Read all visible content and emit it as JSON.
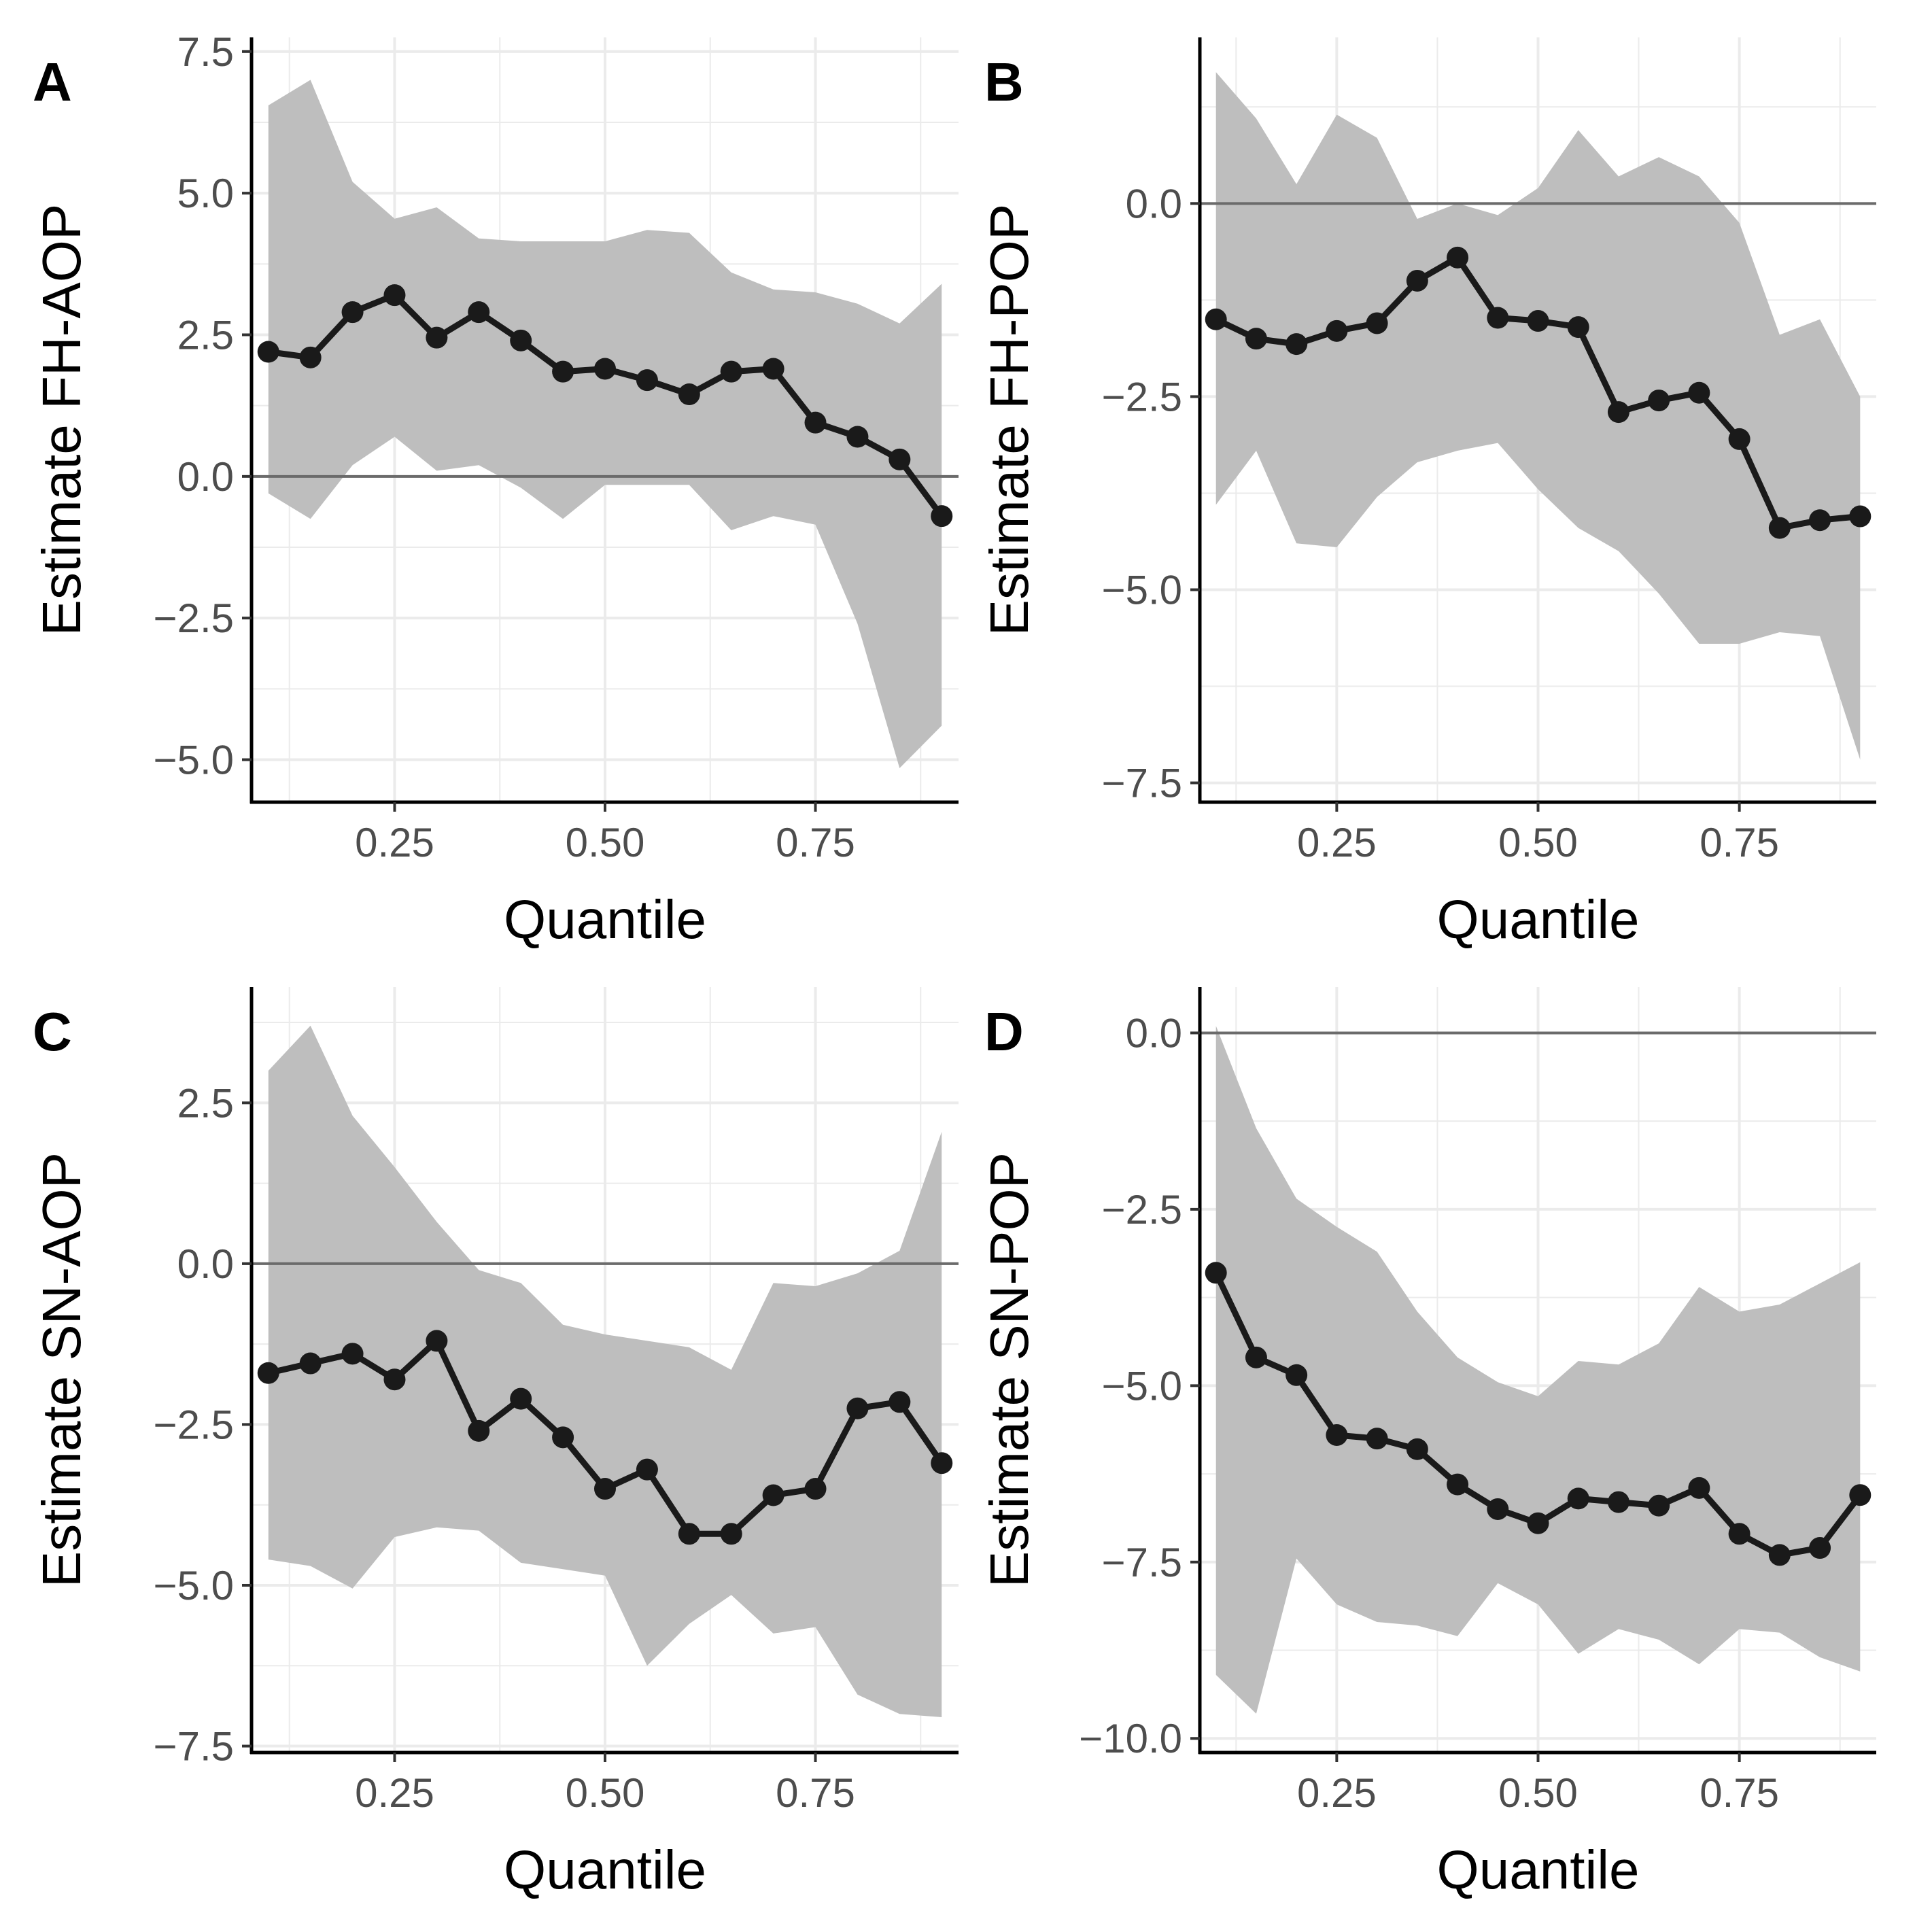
{
  "figure": {
    "x_ticks": [
      0.25,
      0.5,
      0.75
    ],
    "x_tick_labels": [
      "0.25",
      "0.50",
      "0.75"
    ],
    "colors": {
      "ribbon": "#bebebe",
      "line": "#1a1a1a",
      "grid": "#ebebeb",
      "zero_line": "#6b6b6b",
      "axis": "#000000"
    }
  },
  "chart_data": [
    {
      "type": "line",
      "panel": "A",
      "xlabel": "Quantile",
      "ylabel": "Estimate FH-AOP",
      "xlim": [
        0.08,
        0.92
      ],
      "ylim": [
        -5.75,
        7.75
      ],
      "y_ticks": [
        -5,
        -2.5,
        0,
        2.5,
        5,
        7.5
      ],
      "y_tick_labels": [
        "−5.0",
        "−2.5",
        "0.0",
        "2.5",
        "5.0",
        "7.5"
      ],
      "hline": 0,
      "x": [
        0.1,
        0.15,
        0.2,
        0.25,
        0.3,
        0.35,
        0.4,
        0.45,
        0.5,
        0.55,
        0.6,
        0.65,
        0.7,
        0.75,
        0.8,
        0.85,
        0.9
      ],
      "values": [
        2.2,
        2.1,
        2.9,
        3.2,
        2.45,
        2.9,
        2.4,
        1.85,
        1.9,
        1.7,
        1.45,
        1.85,
        1.9,
        0.95,
        0.7,
        0.3,
        -0.7
      ],
      "lower": [
        -0.3,
        -0.75,
        0.2,
        0.7,
        0.1,
        0.2,
        -0.2,
        -0.75,
        -0.15,
        -0.15,
        -0.15,
        -0.95,
        -0.7,
        -0.85,
        -2.6,
        -5.15,
        -4.4
      ],
      "upper": [
        6.55,
        7.0,
        5.2,
        4.55,
        4.75,
        4.2,
        4.15,
        4.15,
        4.15,
        4.35,
        4.3,
        3.6,
        3.3,
        3.25,
        3.05,
        2.7,
        3.4
      ]
    },
    {
      "type": "line",
      "panel": "B",
      "xlabel": "Quantile",
      "ylabel": "Estimate FH-POP",
      "xlim": [
        0.08,
        0.92
      ],
      "ylim": [
        -7.75,
        2.15
      ],
      "y_ticks": [
        -7.5,
        -5,
        -2.5,
        0
      ],
      "y_tick_labels": [
        "−7.5",
        "−5.0",
        "−2.5",
        "0.0"
      ],
      "hline": 0,
      "x": [
        0.1,
        0.15,
        0.2,
        0.25,
        0.3,
        0.35,
        0.4,
        0.45,
        0.5,
        0.55,
        0.6,
        0.65,
        0.7,
        0.75,
        0.8,
        0.85,
        0.9
      ],
      "values": [
        -1.5,
        -1.75,
        -1.82,
        -1.65,
        -1.55,
        -1.0,
        -0.7,
        -1.48,
        -1.52,
        -1.6,
        -2.7,
        -2.55,
        -2.45,
        -3.05,
        -4.2,
        -4.1,
        -4.05
      ],
      "lower": [
        -3.9,
        -3.2,
        -4.4,
        -4.45,
        -3.8,
        -3.35,
        -3.2,
        -3.1,
        -3.7,
        -4.2,
        -4.5,
        -5.05,
        -5.7,
        -5.7,
        -5.55,
        -5.6,
        -7.2
      ],
      "upper": [
        1.7,
        1.1,
        0.25,
        1.15,
        0.85,
        -0.2,
        0.0,
        -0.15,
        0.2,
        0.95,
        0.35,
        0.6,
        0.35,
        -0.25,
        -1.7,
        -1.5,
        -2.5
      ]
    },
    {
      "type": "line",
      "panel": "C",
      "xlabel": "Quantile",
      "ylabel": "Estimate SN-AOP",
      "xlim": [
        0.08,
        0.92
      ],
      "ylim": [
        -7.6,
        4.3
      ],
      "y_ticks": [
        -7.5,
        -5,
        -2.5,
        0,
        2.5
      ],
      "y_tick_labels": [
        "−7.5",
        "−5.0",
        "−2.5",
        "0.0",
        "2.5"
      ],
      "hline": 0,
      "x": [
        0.1,
        0.15,
        0.2,
        0.25,
        0.3,
        0.35,
        0.4,
        0.45,
        0.5,
        0.55,
        0.6,
        0.65,
        0.7,
        0.75,
        0.8,
        0.85,
        0.9
      ],
      "values": [
        -1.7,
        -1.55,
        -1.4,
        -1.8,
        -1.2,
        -2.6,
        -2.1,
        -2.7,
        -3.5,
        -3.2,
        -4.2,
        -4.2,
        -3.6,
        -3.5,
        -2.25,
        -2.15,
        -3.1
      ],
      "lower": [
        -4.6,
        -4.7,
        -5.05,
        -4.25,
        -4.1,
        -4.15,
        -4.65,
        -4.75,
        -4.85,
        -6.25,
        -5.6,
        -5.15,
        -5.75,
        -5.65,
        -6.7,
        -7.0,
        -7.05
      ],
      "upper": [
        3.0,
        3.7,
        2.3,
        1.5,
        0.65,
        -0.1,
        -0.3,
        -0.95,
        -1.1,
        -1.2,
        -1.3,
        -1.65,
        -0.3,
        -0.35,
        -0.15,
        0.2,
        2.05
      ]
    },
    {
      "type": "line",
      "panel": "D",
      "xlabel": "Quantile",
      "ylabel": "Estimate SN-POP",
      "xlim": [
        0.08,
        0.92
      ],
      "ylim": [
        -10.2,
        0.65
      ],
      "y_ticks": [
        -10,
        -7.5,
        -5,
        -2.5,
        0
      ],
      "y_tick_labels": [
        "−10.0",
        "−7.5",
        "−5.0",
        "−2.5",
        "0.0"
      ],
      "hline": 0,
      "x": [
        0.1,
        0.15,
        0.2,
        0.25,
        0.3,
        0.35,
        0.4,
        0.45,
        0.5,
        0.55,
        0.6,
        0.65,
        0.7,
        0.75,
        0.8,
        0.85,
        0.9
      ],
      "values": [
        -3.4,
        -4.6,
        -4.85,
        -5.7,
        -5.75,
        -5.9,
        -6.4,
        -6.75,
        -6.95,
        -6.6,
        -6.65,
        -6.7,
        -6.45,
        -7.1,
        -7.4,
        -7.3,
        -6.55
      ],
      "lower": [
        -9.1,
        -9.65,
        -7.45,
        -8.1,
        -8.35,
        -8.4,
        -8.55,
        -7.8,
        -8.1,
        -8.8,
        -8.45,
        -8.6,
        -8.95,
        -8.45,
        -8.5,
        -8.85,
        -9.05
      ],
      "upper": [
        0.1,
        -1.35,
        -2.35,
        -2.75,
        -3.1,
        -3.95,
        -4.6,
        -4.95,
        -5.15,
        -4.65,
        -4.7,
        -4.4,
        -3.6,
        -3.95,
        -3.85,
        -3.55,
        -3.25
      ]
    }
  ]
}
